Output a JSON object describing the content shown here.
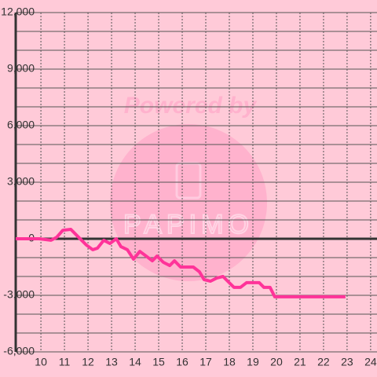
{
  "chart_data": {
    "type": "line",
    "watermark": {
      "top": "Powered by",
      "bottom": "PAPIMO"
    },
    "x": [
      8.93,
      9.93,
      10.43,
      10.67,
      10.93,
      11.27,
      11.6,
      11.93,
      12.2,
      12.4,
      12.67,
      12.93,
      13.2,
      13.4,
      13.67,
      13.93,
      14.2,
      14.47,
      14.73,
      14.93,
      15.2,
      15.47,
      15.67,
      15.93,
      16.47,
      16.73,
      16.93,
      17.2,
      17.47,
      17.73,
      17.93,
      18.2,
      18.47,
      18.73,
      19.27,
      19.47,
      19.73,
      19.93,
      22.93
    ],
    "series": [
      {
        "color": "#ff3399",
        "values": [
          0,
          0,
          -80,
          80,
          450,
          500,
          80,
          -330,
          -580,
          -500,
          -80,
          -250,
          0,
          -420,
          -580,
          -1080,
          -670,
          -920,
          -1170,
          -920,
          -1250,
          -1420,
          -1170,
          -1500,
          -1500,
          -1750,
          -2170,
          -2250,
          -2080,
          -2000,
          -2250,
          -2580,
          -2580,
          -2330,
          -2330,
          -2580,
          -2580,
          -3080,
          -3080
        ]
      }
    ],
    "xlim": [
      8.93,
      24.27
    ],
    "ylim": [
      -6000,
      12000
    ],
    "xticks": [
      10,
      11,
      12,
      13,
      14,
      15,
      16,
      17,
      18,
      19,
      20,
      21,
      22,
      23,
      24
    ],
    "yticks": [
      {
        "value": 12000,
        "label": "12,000"
      },
      {
        "value": 9000,
        "label": "9,000"
      },
      {
        "value": 6000,
        "label": "6,000"
      },
      {
        "value": 3000,
        "label": "3,000"
      },
      0,
      {
        "value": -3000,
        "label": "-3,000"
      },
      {
        "value": -6000,
        "label": "-6,000"
      }
    ],
    "ygrid": [
      -6000,
      -5000,
      -4000,
      -3000,
      -2000,
      -1000,
      0,
      1000,
      2000,
      3000,
      4000,
      5000,
      6000,
      7000,
      8000,
      9000,
      10000,
      11000,
      12000
    ],
    "grid": true
  }
}
